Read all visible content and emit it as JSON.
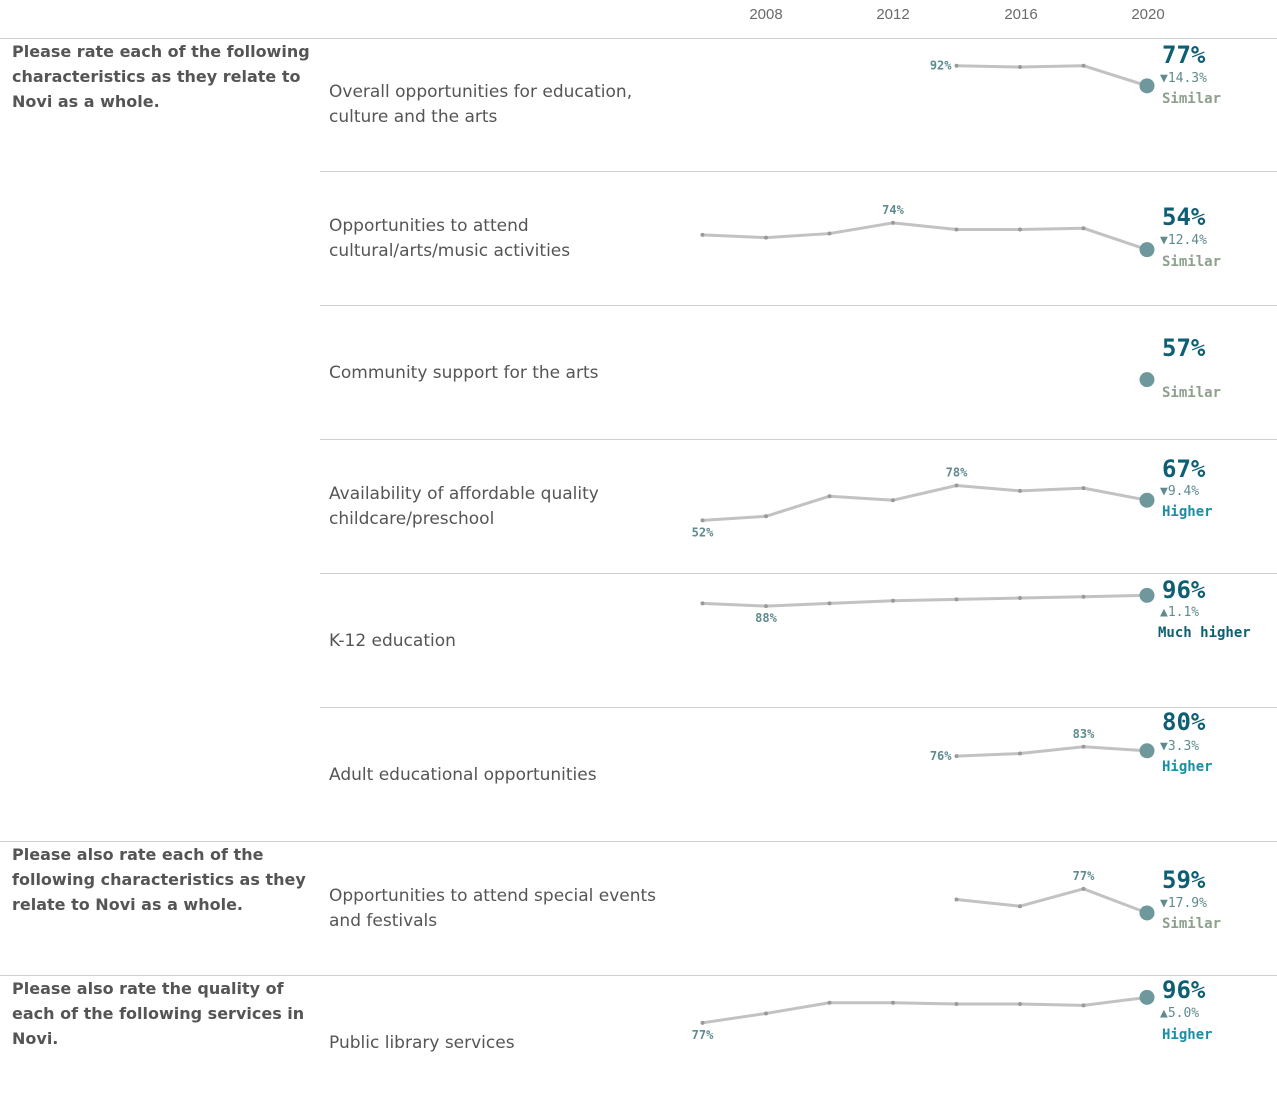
{
  "colors": {
    "line": "#c2c2c2",
    "point": "#9a9a9a",
    "current_dot": "#6e989c",
    "value": "#0e5f73",
    "label_small": "#5f8b8f",
    "similar": "#8da08c",
    "higher": "#1a8fa3",
    "much_higher": "#0e5f73"
  },
  "axis": {
    "ticks": [
      "2008",
      "2012",
      "2016",
      "2020"
    ]
  },
  "questions": [
    "Please rate each of the following characteristics as they relate to Novi as a whole.",
    "Please also rate each of the following characteristics as they relate to Novi as a whole.",
    "Please also rate the quality of each of the following services in Novi."
  ],
  "rows": [
    {
      "label": "Overall opportunities for education, culture and the arts",
      "current": "77%",
      "change": "▼14.3%",
      "rating": "Similar"
    },
    {
      "label": "Opportunities to attend cultural/arts/music activities",
      "current": "54%",
      "change": "▼12.4%",
      "rating": "Similar"
    },
    {
      "label": "Community support for the arts",
      "current": "57%",
      "change": "",
      "rating": "Similar"
    },
    {
      "label": "Availability of affordable quality childcare/preschool",
      "current": "67%",
      "change": "▼9.4%",
      "rating": "Higher"
    },
    {
      "label": "K-12 education",
      "current": "96%",
      "change": "▲1.1%",
      "rating": "Much higher"
    },
    {
      "label": "Adult educational opportunities",
      "current": "80%",
      "change": "▼3.3%",
      "rating": "Higher"
    },
    {
      "label": "Opportunities to attend special events and festivals",
      "current": "59%",
      "change": "▼17.9%",
      "rating": "Similar"
    },
    {
      "label": "Public library services",
      "current": "96%",
      "change": "▲5.0%",
      "rating": "Higher"
    }
  ],
  "chart_data": {
    "type": "line",
    "x_ticks": [
      "2008",
      "2012",
      "2016",
      "2020"
    ],
    "series": [
      {
        "name": "Overall opportunities for education, culture and the arts",
        "x": [
          2014,
          2016,
          2018,
          2020
        ],
        "values": [
          92,
          91,
          92,
          77
        ],
        "labels": [
          {
            "x": 2014,
            "text": "92%"
          }
        ]
      },
      {
        "name": "Opportunities to attend cultural/arts/music activities",
        "x": [
          2006,
          2008,
          2010,
          2012,
          2014,
          2016,
          2018,
          2020
        ],
        "values": [
          65,
          63,
          66,
          74,
          69,
          69,
          70,
          54
        ],
        "labels": [
          {
            "x": 2012,
            "text": "74%"
          }
        ]
      },
      {
        "name": "Community support for the arts",
        "x": [
          2020
        ],
        "values": [
          57
        ],
        "labels": []
      },
      {
        "name": "Availability of affordable quality childcare/preschool",
        "x": [
          2006,
          2008,
          2010,
          2012,
          2014,
          2016,
          2018,
          2020
        ],
        "values": [
          52,
          55,
          70,
          67,
          78,
          74,
          76,
          67
        ],
        "labels": [
          {
            "x": 2006,
            "text": "52%"
          },
          {
            "x": 2014,
            "text": "78%"
          }
        ]
      },
      {
        "name": "K-12 education",
        "x": [
          2006,
          2008,
          2010,
          2012,
          2014,
          2016,
          2018,
          2020
        ],
        "values": [
          90,
          88,
          90,
          92,
          93,
          94,
          95,
          96
        ],
        "labels": [
          {
            "x": 2008,
            "text": "88%"
          }
        ]
      },
      {
        "name": "Adult educational opportunities",
        "x": [
          2014,
          2016,
          2018,
          2020
        ],
        "values": [
          76,
          78,
          83,
          80
        ],
        "labels": [
          {
            "x": 2014,
            "text": "76%"
          },
          {
            "x": 2018,
            "text": "83%"
          }
        ]
      },
      {
        "name": "Opportunities to attend special events and festivals",
        "x": [
          2014,
          2016,
          2018,
          2020
        ],
        "values": [
          69,
          64,
          77,
          59
        ],
        "labels": [
          {
            "x": 2018,
            "text": "77%"
          }
        ]
      },
      {
        "name": "Public library services",
        "x": [
          2006,
          2008,
          2010,
          2012,
          2014,
          2016,
          2018,
          2020
        ],
        "values": [
          77,
          84,
          92,
          92,
          91,
          91,
          90,
          96
        ],
        "labels": [
          {
            "x": 2006,
            "text": "77%"
          }
        ]
      }
    ]
  }
}
